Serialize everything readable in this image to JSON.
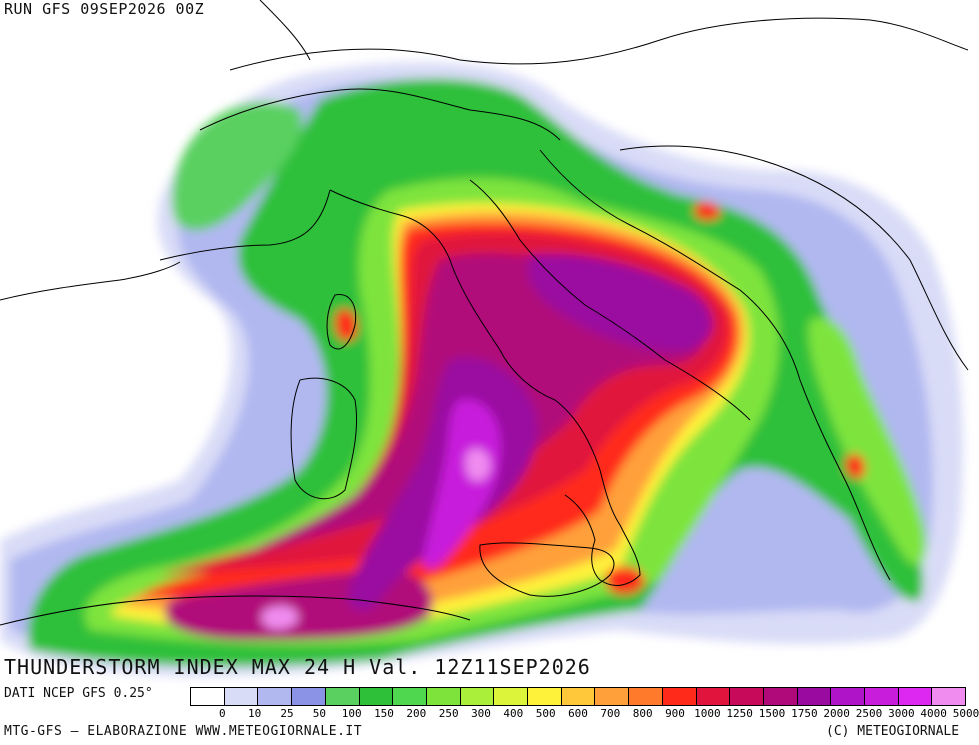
{
  "header": {
    "run_label": "RUN GFS 09SEP2026 00Z"
  },
  "title": "THUNDERSTORM INDEX MAX 24 H Val. 12Z11SEP2026",
  "source_label": "DATI NCEP GFS 0.25°",
  "footer": {
    "left": "MTG-GFS – ELABORAZIONE WWW.METEOGIORNALE.IT",
    "right": "(C) METEOGIORNALE"
  },
  "legend": {
    "colors": [
      "#ffffff",
      "#d9dcf7",
      "#b1b8f0",
      "#8a93e6",
      "#5ad061",
      "#2fc03a",
      "#4fd84f",
      "#7ee43c",
      "#aaf03a",
      "#dcf43a",
      "#fff23a",
      "#ffc83a",
      "#ffa03a",
      "#ff7a2a",
      "#ff2a1a",
      "#e0143c",
      "#c80a5a",
      "#b00a7a",
      "#9a0aa0",
      "#b014c8",
      "#c81edc",
      "#dc28f0",
      "#f08cf0"
    ],
    "labels": [
      "0",
      "10",
      "25",
      "50",
      "100",
      "150",
      "200",
      "250",
      "300",
      "400",
      "500",
      "600",
      "700",
      "800",
      "900",
      "1000",
      "1250",
      "1500",
      "1750",
      "2000",
      "2500",
      "3000",
      "4000",
      "5000"
    ]
  },
  "map": {
    "colors": {
      "sea": "#ffffff",
      "border": "#000000"
    },
    "field_colors": {
      "very_light": "#d9dcf7",
      "light": "#b1b8f0",
      "mid_blue": "#8a93e6",
      "green": "#2fc03a",
      "light_green": "#7ee43c",
      "yellow": "#fff23a",
      "orange": "#ffa03a",
      "red": "#ff2a1a",
      "crimson": "#e0143c",
      "magenta": "#b00a7a",
      "purple": "#9a0aa0",
      "violet": "#c81edc",
      "pink": "#f08cf0"
    }
  }
}
